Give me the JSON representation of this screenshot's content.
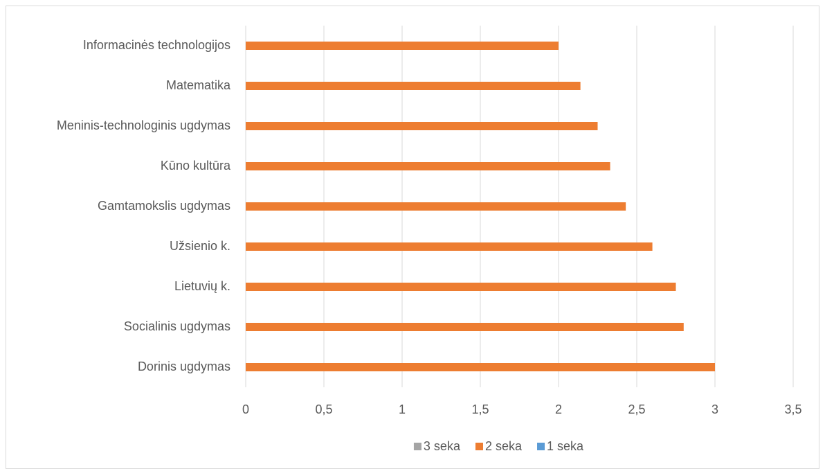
{
  "chart_data": {
    "type": "bar",
    "orientation": "horizontal",
    "categories": [
      "Informacinės technologijos",
      "Matematika",
      "Meninis-technologinis ugdymas",
      "Kūno kultūra",
      "Gamtamokslis ugdymas",
      "Užsienio k.",
      "Lietuvių k.",
      "Socialinis ugdymas",
      "Dorinis ugdymas"
    ],
    "series": [
      {
        "name": "3 seka",
        "color": "#a5a5a5",
        "values": [
          null,
          null,
          null,
          null,
          null,
          null,
          null,
          null,
          null
        ]
      },
      {
        "name": "2 seka",
        "color": "#ed7d31",
        "values": [
          2.0,
          2.14,
          2.25,
          2.33,
          2.43,
          2.6,
          2.75,
          2.8,
          3.0
        ]
      },
      {
        "name": "1 seka",
        "color": "#5b9bd5",
        "values": [
          null,
          null,
          null,
          null,
          null,
          null,
          null,
          null,
          null
        ]
      }
    ],
    "xlim": [
      0,
      3.5
    ],
    "xticks": [
      0,
      {
        "value": 0.5,
        "label": "0,5"
      },
      1,
      {
        "value": 1.5,
        "label": "1,5"
      },
      2,
      {
        "value": 2.5,
        "label": "2,5"
      },
      3,
      {
        "value": 3.5,
        "label": "3,5"
      }
    ],
    "grid": true,
    "legend": "bottom"
  }
}
